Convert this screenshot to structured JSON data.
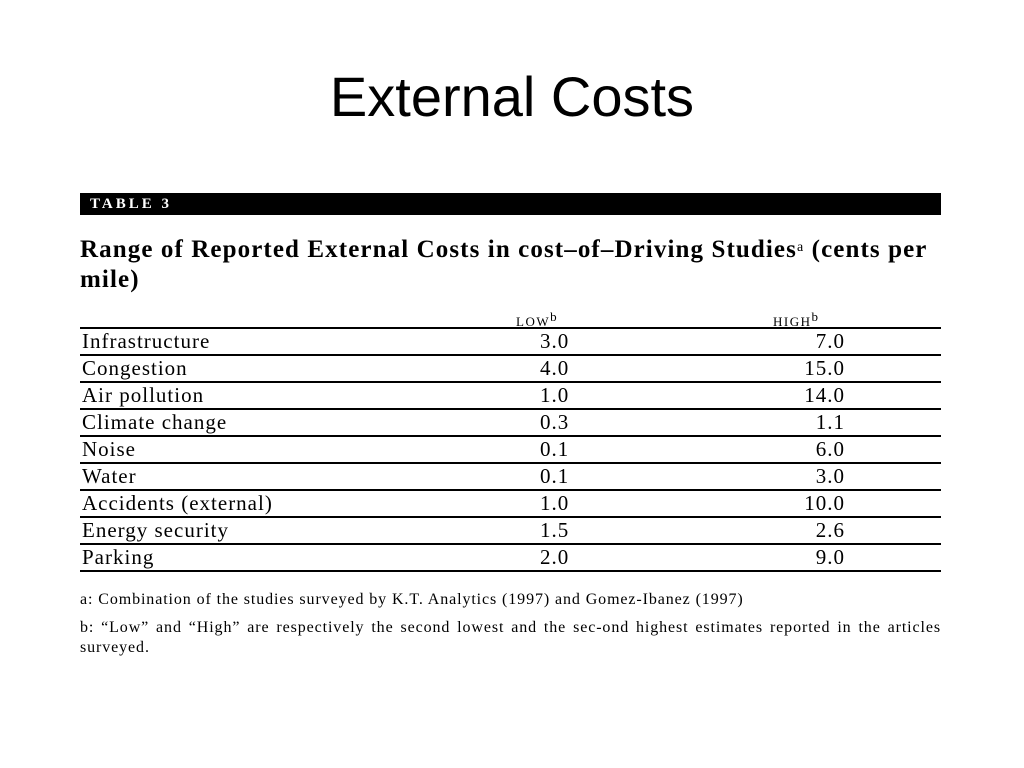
{
  "slide": {
    "title": "External Costs"
  },
  "table": {
    "label": "TABLE 3",
    "caption": "Range of Reported External Costs in cost–of–Driving Studies",
    "caption_sup": "a",
    "caption_units": "(cents per mile)",
    "columns": {
      "low": "LOW",
      "low_sup": "b",
      "high": "HIGH",
      "high_sup": "b"
    },
    "rows": [
      {
        "name": "Infrastructure",
        "low": "3.0",
        "high": "7.0"
      },
      {
        "name": "Congestion",
        "low": "4.0",
        "high": "15.0"
      },
      {
        "name": "Air pollution",
        "low": "1.0",
        "high": "14.0"
      },
      {
        "name": "Climate change",
        "low": "0.3",
        "high": "1.1"
      },
      {
        "name": "Noise",
        "low": "0.1",
        "high": "6.0"
      },
      {
        "name": "Water",
        "low": "0.1",
        "high": "3.0"
      },
      {
        "name": "Accidents (external)",
        "low": "1.0",
        "high": "10.0"
      },
      {
        "name": "Energy security",
        "low": "1.5",
        "high": "2.6"
      },
      {
        "name": "Parking",
        "low": "2.0",
        "high": "9.0"
      }
    ],
    "notes": {
      "a": "a: Combination of the studies surveyed by K.T. Analytics (1997) and Gomez-Ibanez (1997)",
      "b": "b: “Low” and “High” are respectively the second lowest and the sec-ond highest estimates reported in the articles surveyed."
    }
  }
}
